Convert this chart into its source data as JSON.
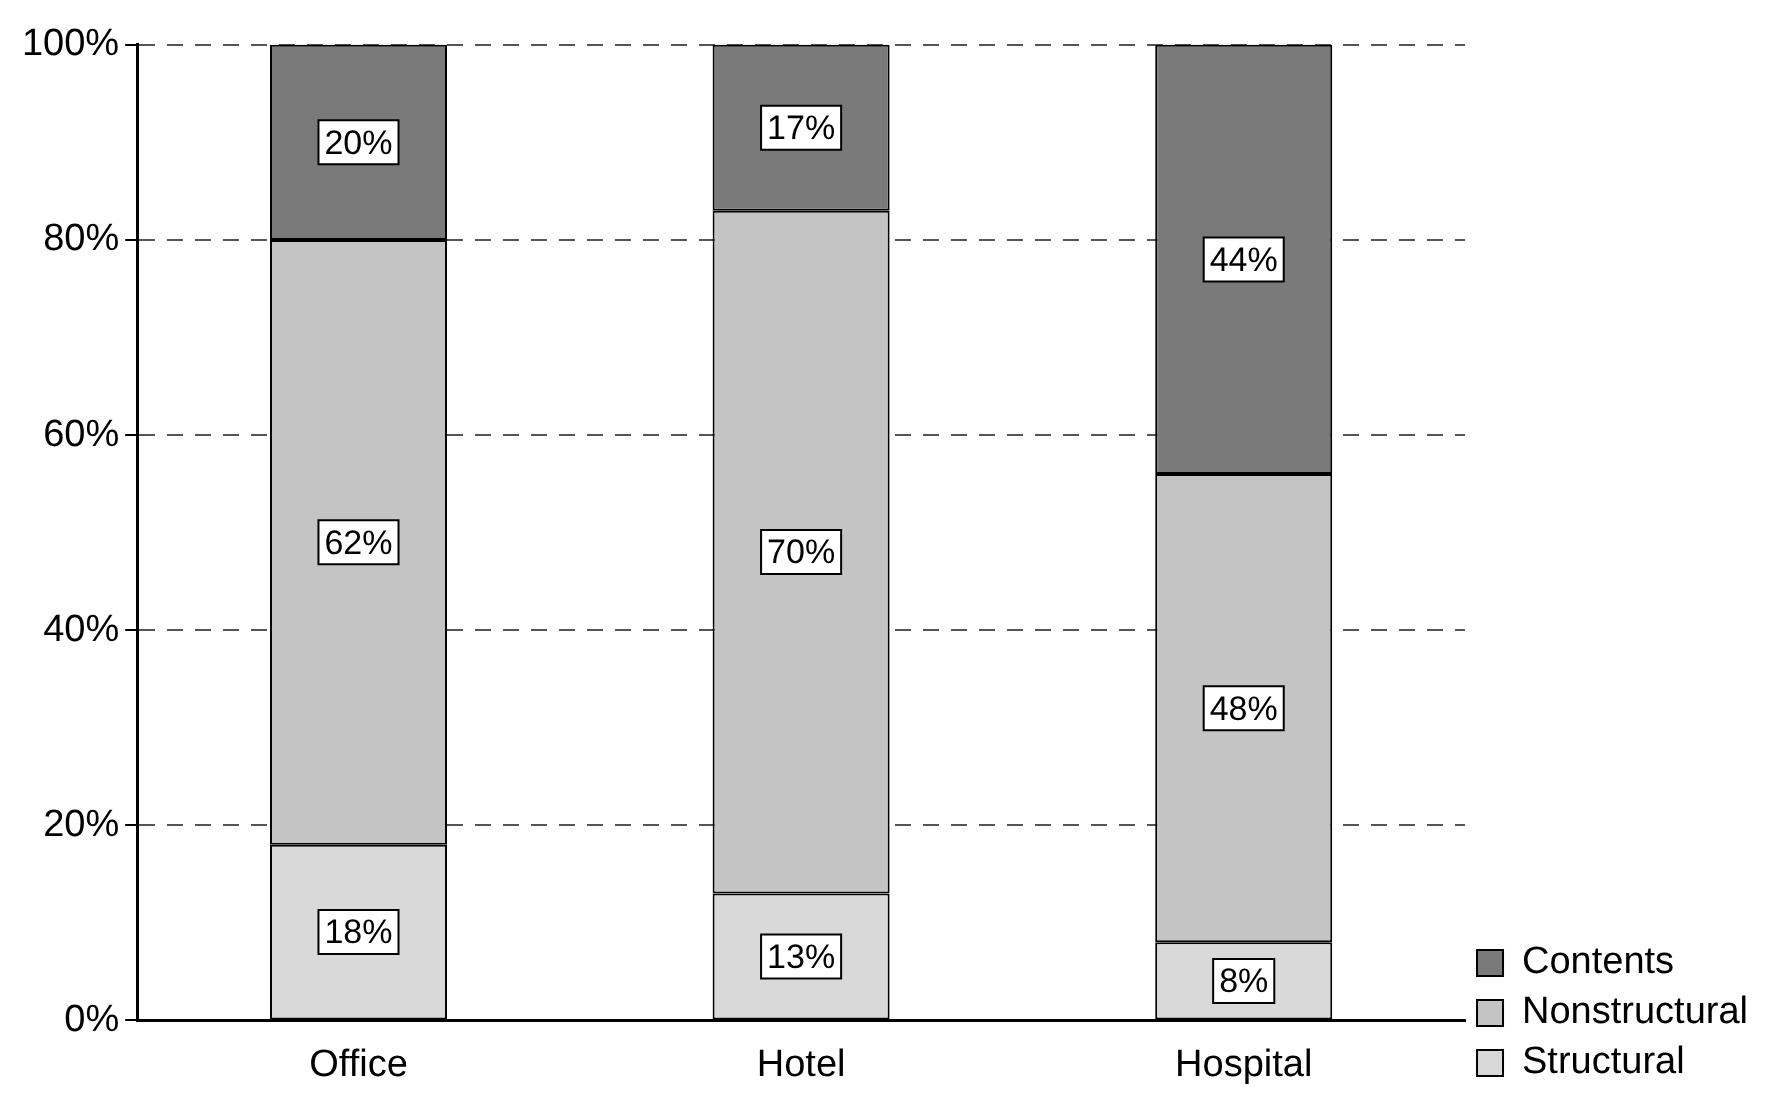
{
  "chart_data": {
    "type": "bar",
    "stacked": true,
    "categories": [
      "Office",
      "Hotel",
      "Hospital"
    ],
    "series": [
      {
        "name": "Structural",
        "color": "#d9d9d9",
        "values": [
          18,
          13,
          8
        ],
        "value_labels": [
          "18%",
          "13%",
          "8%"
        ]
      },
      {
        "name": "Nonstructural",
        "color": "#c4c4c4",
        "values": [
          62,
          70,
          48
        ],
        "value_labels": [
          "62%",
          "70%",
          "48%"
        ]
      },
      {
        "name": "Contents",
        "color": "#7a7a7a",
        "values": [
          20,
          17,
          44
        ],
        "value_labels": [
          "20%",
          "17%",
          "44%"
        ]
      }
    ],
    "ylim": [
      0,
      100
    ],
    "yticks": [
      {
        "value": 0,
        "label": "0%"
      },
      {
        "value": 20,
        "label": "20%"
      },
      {
        "value": 40,
        "label": "40%"
      },
      {
        "value": 60,
        "label": "60%"
      },
      {
        "value": 80,
        "label": "80%"
      },
      {
        "value": 100,
        "label": "100%"
      }
    ],
    "grid": "y",
    "legend": "bottom right"
  }
}
